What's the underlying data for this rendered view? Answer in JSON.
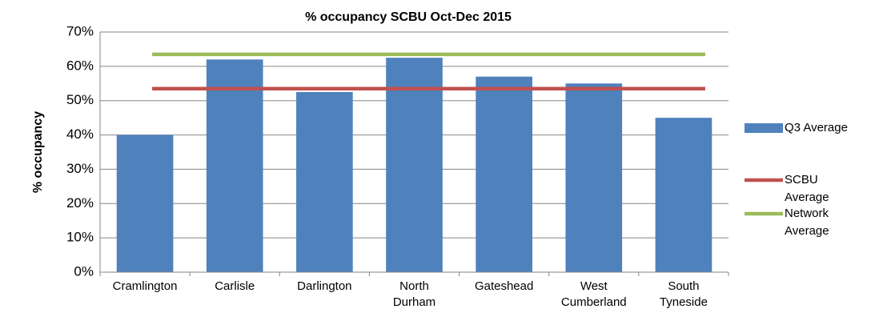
{
  "chart_data": {
    "type": "bar",
    "title": "% occupancy SCBU Oct-Dec 2015",
    "y_label": "% occupancy",
    "categories": [
      "Cramlington",
      "Carlisle",
      "Darlington",
      "North Durham",
      "Gateshead",
      "West Cumberland",
      "South Tyneside"
    ],
    "series": [
      {
        "name": "Q3 Average",
        "type": "bar",
        "color": "#4f81bd",
        "values": [
          40,
          62,
          52.5,
          62.5,
          57,
          55,
          45
        ]
      },
      {
        "name": "SCBU Average",
        "type": "line",
        "color": "#c0504d",
        "values": [
          53.5,
          53.5,
          53.5,
          53.5,
          53.5,
          53.5,
          53.5
        ]
      },
      {
        "name": "Network Average",
        "type": "line",
        "color": "#9bbb59",
        "values": [
          63.5,
          63.5,
          63.5,
          63.5,
          63.5,
          63.5,
          63.5
        ]
      }
    ],
    "ylim": [
      0,
      70
    ],
    "yticks": [
      {
        "value": 0,
        "label": "0%"
      },
      {
        "value": 10,
        "label": "10%"
      },
      {
        "value": 20,
        "label": "20%"
      },
      {
        "value": 30,
        "label": "30%"
      },
      {
        "value": 40,
        "label": "40%"
      },
      {
        "value": 50,
        "label": "50%"
      },
      {
        "value": 60,
        "label": "60%"
      },
      {
        "value": 70,
        "label": "70%"
      }
    ],
    "grid": true,
    "legend": "right"
  }
}
